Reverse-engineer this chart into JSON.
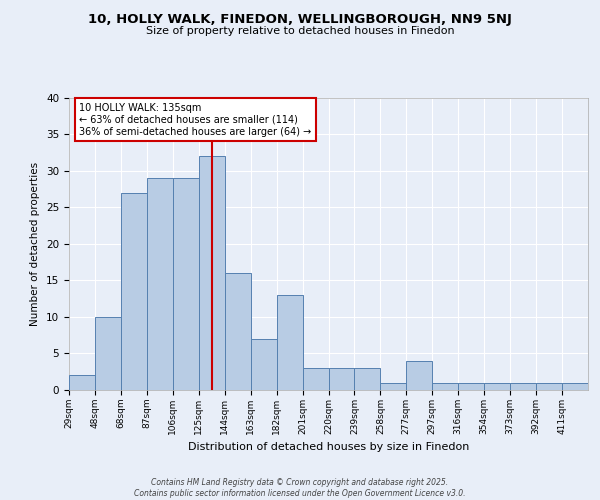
{
  "title1": "10, HOLLY WALK, FINEDON, WELLINGBOROUGH, NN9 5NJ",
  "title2": "Size of property relative to detached houses in Finedon",
  "xlabel": "Distribution of detached houses by size in Finedon",
  "ylabel": "Number of detached properties",
  "bin_labels": [
    "29sqm",
    "48sqm",
    "68sqm",
    "87sqm",
    "106sqm",
    "125sqm",
    "144sqm",
    "163sqm",
    "182sqm",
    "201sqm",
    "220sqm",
    "239sqm",
    "258sqm",
    "277sqm",
    "297sqm",
    "316sqm",
    "354sqm",
    "373sqm",
    "392sqm",
    "411sqm"
  ],
  "bin_edges": [
    29,
    48,
    68,
    87,
    106,
    125,
    144,
    163,
    182,
    201,
    220,
    239,
    258,
    277,
    297,
    316,
    354,
    373,
    392,
    411,
    430
  ],
  "values": [
    2,
    10,
    27,
    29,
    29,
    32,
    16,
    7,
    13,
    3,
    3,
    3,
    1,
    4,
    1,
    1,
    1,
    1,
    1,
    1
  ],
  "bar_color": "#b8cce4",
  "bar_edge_color": "#5580b0",
  "red_line_x": 135,
  "annotation_title": "10 HOLLY WALK: 135sqm",
  "annotation_line1": "← 63% of detached houses are smaller (114)",
  "annotation_line2": "36% of semi-detached houses are larger (64) →",
  "annotation_box_color": "#ffffff",
  "annotation_box_edge": "#cc0000",
  "red_line_color": "#cc0000",
  "background_color": "#e8eef8",
  "grid_color": "#ffffff",
  "ylim": [
    0,
    40
  ],
  "yticks": [
    0,
    5,
    10,
    15,
    20,
    25,
    30,
    35,
    40
  ],
  "footer": "Contains HM Land Registry data © Crown copyright and database right 2025.\nContains public sector information licensed under the Open Government Licence v3.0."
}
